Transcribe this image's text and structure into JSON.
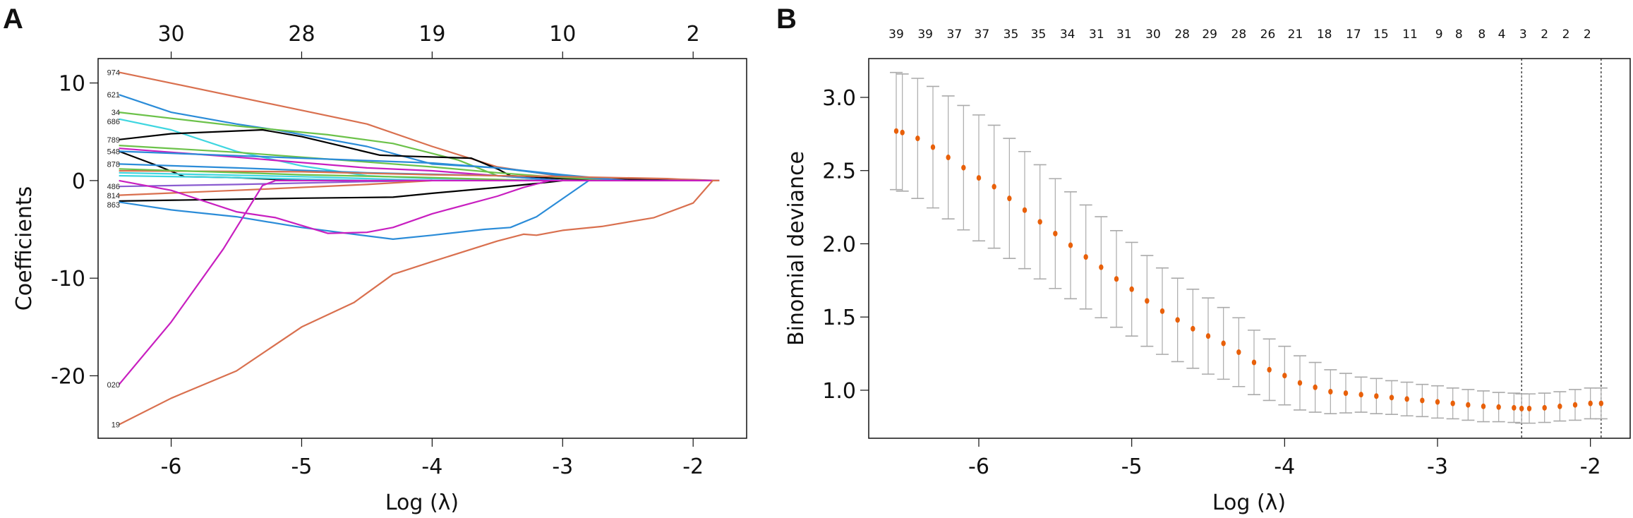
{
  "chart_data": [
    {
      "panel_label": "A",
      "type": "line",
      "xlabel": "Log (λ)",
      "ylabel": "Coefficients",
      "xlim": [
        -6.56,
        -1.59
      ],
      "ylim": [
        -26.4,
        12.5
      ],
      "x_ticks": [
        -6,
        -5,
        -4,
        -3,
        -2
      ],
      "y_ticks": [
        10,
        0,
        -10,
        -20
      ],
      "top_axis": {
        "positions": [
          -6,
          -5,
          -4,
          -3,
          -2
        ],
        "labels": [
          "30",
          "28",
          "19",
          "10",
          "2"
        ]
      },
      "grid": false,
      "variable_labels": [
        {
          "text": "974",
          "y": 11.1
        },
        {
          "text": "621",
          "y": 8.8
        },
        {
          "text": "34",
          "y": 7.0
        },
        {
          "text": "686",
          "y": 6.3
        },
        {
          "text": "789",
          "y": 4.2
        },
        {
          "text": "548",
          "y": 3.0
        },
        {
          "text": "878",
          "y": 1.7
        },
        {
          "text": "486",
          "y": -0.6
        },
        {
          "text": "814",
          "y": -1.5
        },
        {
          "text": "863",
          "y": -2.1
        },
        {
          "text": "020",
          "y": -20.9
        },
        {
          "text": "19",
          "y": -25.0
        }
      ],
      "series": [
        {
          "color": "#D9704F",
          "points": [
            [
              -6.4,
              11.1
            ],
            [
              -5,
              7.2
            ],
            [
              -4.5,
              5.8
            ],
            [
              -4,
              3.5
            ],
            [
              -3.5,
              1.4
            ],
            [
              -3,
              0.4
            ],
            [
              -2.5,
              0.2
            ],
            [
              -2,
              0.1
            ],
            [
              -1.8,
              0
            ]
          ]
        },
        {
          "color": "#2B8CD8",
          "points": [
            [
              -6.4,
              8.8
            ],
            [
              -6,
              7
            ],
            [
              -5.5,
              5.8
            ],
            [
              -5.2,
              5.2
            ],
            [
              -4.5,
              3.5
            ],
            [
              -4,
              1.7
            ],
            [
              -3.5,
              1.3
            ],
            [
              -3,
              0.6
            ],
            [
              -2.6,
              0.1
            ],
            [
              -2,
              0
            ]
          ]
        },
        {
          "color": "#6CC24A",
          "points": [
            [
              -6.4,
              7
            ],
            [
              -5.5,
              5.6
            ],
            [
              -4.8,
              4.7
            ],
            [
              -4.3,
              3.8
            ],
            [
              -3.8,
              2.1
            ],
            [
              -3.5,
              0.5
            ],
            [
              -3,
              0.2
            ],
            [
              -2.5,
              0
            ]
          ]
        },
        {
          "color": "#3FD6E0",
          "points": [
            [
              -6.4,
              6.3
            ],
            [
              -6,
              5.2
            ],
            [
              -5.5,
              3
            ],
            [
              -5,
              1.5
            ],
            [
              -4.5,
              0.5
            ],
            [
              -4,
              0.2
            ],
            [
              -3,
              0
            ]
          ]
        },
        {
          "color": "#000000",
          "points": [
            [
              -6.4,
              4.2
            ],
            [
              -6,
              4.8
            ],
            [
              -5.3,
              5.2
            ],
            [
              -5,
              4.5
            ],
            [
              -4.4,
              2.6
            ],
            [
              -4.2,
              2.5
            ],
            [
              -3.7,
              2.3
            ],
            [
              -3.5,
              1.2
            ],
            [
              -3.4,
              0.5
            ],
            [
              -3,
              0.2
            ],
            [
              -2.5,
              0.1
            ],
            [
              -2,
              0
            ]
          ]
        },
        {
          "color": "#6CC24A",
          "points": [
            [
              -6.4,
              3.6
            ],
            [
              -5.5,
              2.9
            ],
            [
              -5,
              2.4
            ],
            [
              -4,
              1.4
            ],
            [
              -3.5,
              0.8
            ],
            [
              -3,
              0.3
            ],
            [
              -2.5,
              0
            ]
          ]
        },
        {
          "color": "#000000",
          "points": [
            [
              -6.4,
              3
            ],
            [
              -6.1,
              1.5
            ],
            [
              -5.9,
              0.4
            ],
            [
              -5.5,
              0.3
            ],
            [
              -5,
              0
            ]
          ]
        },
        {
          "color": "#C81FC0",
          "points": [
            [
              -6.4,
              3.3
            ],
            [
              -5.5,
              2.4
            ],
            [
              -4.5,
              1.3
            ],
            [
              -4,
              1
            ],
            [
              -3.5,
              0.5
            ],
            [
              -3,
              0
            ]
          ]
        },
        {
          "color": "#2B8CD8",
          "points": [
            [
              -6.4,
              3
            ],
            [
              -5,
              2.3
            ],
            [
              -4,
              1.8
            ],
            [
              -3.5,
              1.3
            ],
            [
              -3,
              0.5
            ],
            [
              -2.5,
              0
            ]
          ]
        },
        {
          "color": "#2B8CD8",
          "points": [
            [
              -6.4,
              1.7
            ],
            [
              -5.5,
              1.3
            ],
            [
              -4.5,
              0.8
            ],
            [
              -3.5,
              0.5
            ],
            [
              -3,
              0
            ]
          ]
        },
        {
          "color": "#D9704F",
          "points": [
            [
              -6.4,
              1
            ],
            [
              -5,
              0.9
            ],
            [
              -4,
              0.6
            ],
            [
              -3,
              0.4
            ],
            [
              -2.2,
              0.2
            ],
            [
              -1.9,
              0
            ]
          ]
        },
        {
          "color": "#6CC24A",
          "points": [
            [
              -6.4,
              1.2
            ],
            [
              -5,
              0.6
            ],
            [
              -4,
              0.3
            ],
            [
              -3.2,
              0
            ]
          ]
        },
        {
          "color": "#3FD6E0",
          "points": [
            [
              -6.4,
              0.8
            ],
            [
              -5,
              0.4
            ],
            [
              -4,
              0
            ]
          ]
        },
        {
          "color": "#3FD6E0",
          "points": [
            [
              -6.4,
              0.5
            ],
            [
              -5.5,
              0.3
            ],
            [
              -4.5,
              0
            ]
          ]
        },
        {
          "color": "#8A5CD0",
          "points": [
            [
              -6.4,
              -0.6
            ],
            [
              -5.5,
              -0.4
            ],
            [
              -4.5,
              -0.1
            ],
            [
              -4,
              0
            ]
          ]
        },
        {
          "color": "#D9704F",
          "points": [
            [
              -6.4,
              -1.5
            ],
            [
              -5.5,
              -1
            ],
            [
              -4.5,
              -0.4
            ],
            [
              -4,
              0
            ]
          ]
        },
        {
          "color": "#000000",
          "points": [
            [
              -6.4,
              -2.1
            ],
            [
              -5,
              -1.8
            ],
            [
              -4.3,
              -1.7
            ],
            [
              -4,
              -1.3
            ],
            [
              -3.5,
              -0.7
            ],
            [
              -3.2,
              -0.3
            ],
            [
              -3,
              0
            ]
          ]
        },
        {
          "color": "#2B8CD8",
          "points": [
            [
              -6.4,
              -2.2
            ],
            [
              -6,
              -3
            ],
            [
              -5.5,
              -3.7
            ],
            [
              -5,
              -4.8
            ],
            [
              -4.6,
              -5.5
            ],
            [
              -4.3,
              -6
            ],
            [
              -4,
              -5.6
            ],
            [
              -3.6,
              -5
            ],
            [
              -3.4,
              -4.8
            ],
            [
              -3.2,
              -3.7
            ],
            [
              -2.8,
              0
            ],
            [
              -1.8,
              0
            ]
          ]
        },
        {
          "color": "#C81FC0",
          "points": [
            [
              -6.4,
              0
            ],
            [
              -6,
              -1
            ],
            [
              -5.5,
              -3.2
            ],
            [
              -5.2,
              -3.8
            ],
            [
              -4.8,
              -5.4
            ],
            [
              -4.5,
              -5.3
            ],
            [
              -4.3,
              -4.8
            ],
            [
              -4,
              -3.4
            ],
            [
              -3.5,
              -1.6
            ],
            [
              -3.3,
              -0.7
            ],
            [
              -3.1,
              0
            ]
          ]
        },
        {
          "color": "#C81FC0",
          "points": [
            [
              -6.4,
              -20.9
            ],
            [
              -6,
              -14.5
            ],
            [
              -5.6,
              -7
            ],
            [
              -5.3,
              -0.5
            ],
            [
              -5.2,
              0
            ],
            [
              -1.8,
              0
            ]
          ]
        },
        {
          "color": "#D9704F",
          "points": [
            [
              -6.4,
              -25
            ],
            [
              -6,
              -22.3
            ],
            [
              -5.5,
              -19.5
            ],
            [
              -5,
              -15
            ],
            [
              -4.6,
              -12.5
            ],
            [
              -4.3,
              -9.6
            ],
            [
              -4,
              -8.3
            ],
            [
              -3.5,
              -6.2
            ],
            [
              -3.3,
              -5.5
            ],
            [
              -3.2,
              -5.6
            ],
            [
              -3,
              -5.1
            ],
            [
              -2.7,
              -4.7
            ],
            [
              -2.3,
              -3.8
            ],
            [
              -2,
              -2.3
            ],
            [
              -1.85,
              0
            ],
            [
              -1.8,
              0
            ]
          ]
        }
      ]
    },
    {
      "panel_label": "B",
      "type": "scatter",
      "xlabel": "Log (λ)",
      "ylabel": "Binomial deviance",
      "xlim": [
        -6.72,
        -1.74
      ],
      "ylim": [
        0.672,
        3.265
      ],
      "x_ticks": [
        -6,
        -5,
        -4,
        -3,
        -2
      ],
      "y_ticks": [
        3.0,
        2.5,
        2.0,
        1.5,
        1.0
      ],
      "grid": false,
      "point_color": "#E8600A",
      "errorbar_color": "#AAAAAA",
      "vlines": [
        -2.45,
        -1.93
      ],
      "top_axis": {
        "positions": [
          -6.54,
          -6.35,
          -6.16,
          -5.98,
          -5.79,
          -5.61,
          -5.42,
          -5.23,
          -5.05,
          -4.86,
          -4.67,
          -4.49,
          -4.3,
          -4.11,
          -3.93,
          -3.74,
          -3.55,
          -3.37,
          -3.18,
          -2.99,
          -2.86,
          -2.71,
          -2.58,
          -2.44,
          -2.3,
          -2.16,
          -2.02
        ],
        "labels": [
          "39",
          "39",
          "37",
          "37",
          "35",
          "35",
          "34",
          "31",
          "31",
          "30",
          "28",
          "29",
          "28",
          "26",
          "21",
          "18",
          "17",
          "15",
          "11",
          "9",
          "8",
          "8",
          "4",
          "3",
          "2",
          "2",
          "2"
        ]
      },
      "log_lambda": [
        -6.54,
        -6.5,
        -6.4,
        -6.3,
        -6.2,
        -6.1,
        -6.0,
        -5.9,
        -5.8,
        -5.7,
        -5.6,
        -5.5,
        -5.4,
        -5.3,
        -5.2,
        -5.1,
        -5.0,
        -4.9,
        -4.8,
        -4.7,
        -4.6,
        -4.5,
        -4.4,
        -4.3,
        -4.2,
        -4.1,
        -4.0,
        -3.9,
        -3.8,
        -3.7,
        -3.6,
        -3.5,
        -3.4,
        -3.3,
        -3.2,
        -3.1,
        -3.0,
        -2.9,
        -2.8,
        -2.7,
        -2.6,
        -2.5,
        -2.45,
        -2.4,
        -2.3,
        -2.2,
        -2.1,
        -2.0,
        -1.93
      ],
      "deviance": [
        2.77,
        2.76,
        2.72,
        2.66,
        2.59,
        2.52,
        2.45,
        2.39,
        2.31,
        2.23,
        2.15,
        2.07,
        1.99,
        1.91,
        1.84,
        1.76,
        1.69,
        1.61,
        1.54,
        1.48,
        1.42,
        1.37,
        1.32,
        1.26,
        1.19,
        1.14,
        1.1,
        1.05,
        1.02,
        0.99,
        0.98,
        0.97,
        0.96,
        0.95,
        0.94,
        0.93,
        0.92,
        0.91,
        0.9,
        0.89,
        0.885,
        0.88,
        0.875,
        0.875,
        0.88,
        0.89,
        0.9,
        0.91,
        0.91
      ],
      "se": [
        0.4,
        0.4,
        0.41,
        0.415,
        0.42,
        0.425,
        0.43,
        0.42,
        0.41,
        0.4,
        0.39,
        0.375,
        0.365,
        0.355,
        0.345,
        0.33,
        0.32,
        0.31,
        0.295,
        0.285,
        0.27,
        0.26,
        0.245,
        0.235,
        0.22,
        0.21,
        0.2,
        0.185,
        0.17,
        0.15,
        0.135,
        0.12,
        0.12,
        0.115,
        0.115,
        0.11,
        0.11,
        0.105,
        0.105,
        0.105,
        0.1,
        0.1,
        0.1,
        0.1,
        0.1,
        0.1,
        0.105,
        0.105,
        0.105
      ]
    }
  ]
}
